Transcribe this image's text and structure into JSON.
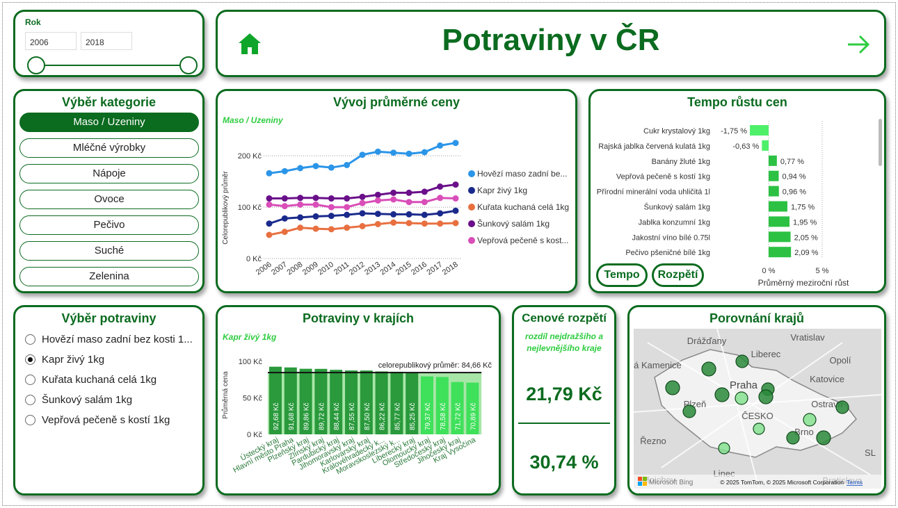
{
  "header": {
    "title": "Potraviny v ČR"
  },
  "year_slicer": {
    "label": "Rok",
    "from": "2006",
    "to": "2018"
  },
  "category": {
    "title": "Výběr kategorie",
    "items": [
      "Maso / Uzeniny",
      "Mléčné výrobky",
      "Nápoje",
      "Ovoce",
      "Pečivo",
      "Suché",
      "Zelenina"
    ],
    "active_index": 0
  },
  "food_select": {
    "title": "Výběr potraviny",
    "items": [
      "Hovězí maso zadní bez kosti 1...",
      "Kapr živý 1kg",
      "Kuřata kuchaná celá 1kg",
      "Šunkový salám 1kg",
      "Vepřová pečeně s kostí 1kg"
    ],
    "selected_index": 1
  },
  "price_trend": {
    "title": "Vývoj průměrné ceny",
    "subtitle": "Maso / Uzeniny",
    "chart_data": {
      "type": "line",
      "x": [
        "2006",
        "2007",
        "2008",
        "2009",
        "2010",
        "2011",
        "2012",
        "2013",
        "2014",
        "2015",
        "2016",
        "2017",
        "2018"
      ],
      "ylabel": "Celorepublikový průměr",
      "yticks": [
        "0 Kč",
        "100 Kč",
        "200 Kč"
      ],
      "ylim": [
        0,
        230
      ],
      "series": [
        {
          "name": "Hovězí maso zadní be...",
          "color": "#2b95e8",
          "values": [
            166,
            170,
            176,
            180,
            177,
            182,
            202,
            208,
            206,
            204,
            207,
            220,
            225
          ]
        },
        {
          "name": "Kapr živý 1kg",
          "color": "#1a2a8c",
          "values": [
            68,
            78,
            80,
            82,
            83,
            85,
            88,
            87,
            86,
            86,
            85,
            88,
            93
          ]
        },
        {
          "name": "Kuřata kuchaná celá 1kg",
          "color": "#e87040",
          "values": [
            46,
            52,
            60,
            58,
            57,
            60,
            63,
            67,
            70,
            69,
            68,
            68,
            69
          ]
        },
        {
          "name": "Šunkový salám 1kg",
          "color": "#6a0f8a",
          "values": [
            117,
            117,
            118,
            118,
            117,
            117,
            120,
            124,
            128,
            128,
            130,
            140,
            144
          ]
        },
        {
          "name": "Vepřová pečeně s kost...",
          "color": "#d94eb8",
          "values": [
            105,
            102,
            105,
            105,
            100,
            100,
            108,
            113,
            115,
            110,
            110,
            118,
            117
          ]
        }
      ]
    }
  },
  "growth": {
    "title": "Tempo růstu cen",
    "xlabel": "Průměrný meziroční růst",
    "xticks": [
      "0 %",
      "5 %"
    ],
    "buttons": [
      "Tempo",
      "Rozpětí"
    ],
    "chart_data": {
      "type": "bar",
      "orientation": "horizontal",
      "categories": [
        "Cukr krystalový 1kg",
        "Rajská jablka červená kulatá 1kg",
        "Banány žluté 1kg",
        "Vepřová pečeně s kostí 1kg",
        "Přírodní minerální voda uhličitá 1l",
        "Šunkový salám 1kg",
        "Jablka konzumní 1kg",
        "Jakostní víno bílé 0.75l",
        "Pečivo pšeničné bílé 1kg"
      ],
      "values": [
        -1.75,
        -0.63,
        0.77,
        0.94,
        0.96,
        1.75,
        1.95,
        2.05,
        2.09
      ],
      "labels": [
        "-1,75 %",
        "-0,63 %",
        "0,77 %",
        "0,94 %",
        "0,96 %",
        "1,75 %",
        "1,95 %",
        "2,05 %",
        "2,09 %"
      ],
      "xlim": [
        -2.5,
        5
      ]
    }
  },
  "regions": {
    "title": "Potraviny v krajích",
    "subtitle": "Kapr živý 1kg",
    "ylabel": "Průměrná cena",
    "reference_label": "celorepublikový průměr: 84,66 Kč",
    "yticks": [
      "0 Kč",
      "50 Kč",
      "100 Kč"
    ],
    "chart_data": {
      "type": "bar",
      "categories": [
        "Ústecký kraj",
        "Hlavní město Praha",
        "Plzeňský kraj",
        "Zlínský kraj",
        "Pardubický kraj",
        "Jihomoravský kraj",
        "Karlovarský kraj",
        "Královéhradecký k...",
        "Moravskoslezský k...",
        "Liberecký kraj",
        "Olomoucký kraj",
        "Středočeský kraj",
        "Jihočeský kraj",
        "Kraj Vysočina"
      ],
      "values": [
        92.68,
        91.68,
        89.86,
        89.72,
        88.44,
        87.55,
        87.5,
        86.22,
        85.77,
        85.25,
        79.37,
        78.58,
        71.72,
        70.89
      ],
      "labels": [
        "92,68 Kč",
        "91,68 Kč",
        "89,86 Kč",
        "89,72 Kč",
        "88,44 Kč",
        "87,55 Kč",
        "87,50 Kč",
        "86,22 Kč",
        "85,77 Kč",
        "85,25 Kč",
        "79,37 Kč",
        "78,58 Kč",
        "71,72 Kč",
        "70,89 Kč"
      ],
      "reference": 84.66,
      "ylim": [
        0,
        100
      ]
    }
  },
  "spread": {
    "title": "Cenové rozpětí",
    "subtitle": "rozdíl nejdražšího a nejlevnějšího kraje",
    "value_abs": "21,79 Kč",
    "value_pct": "30,74 %"
  },
  "map": {
    "title": "Porovnání krajů",
    "places": [
      "Drážďany",
      "Liberec",
      "Vratislav",
      "Saská Kamenice",
      "Opolí",
      "Praha",
      "Katovice",
      "Plzeň",
      "Ostrava",
      "ČESKO",
      "Brno",
      "Řezno",
      "Linec",
      "Mnichov",
      "SL",
      "Bratislava"
    ],
    "attribution": "© 2025 TomTom, © 2025 Microsoft Corporation",
    "terms": "Terms",
    "logo": "Microsoft Bing"
  },
  "colors": {
    "dark_green": "#0b6b1f",
    "bright_green": "#2ecc40",
    "light_green": "#a8e6a8"
  }
}
